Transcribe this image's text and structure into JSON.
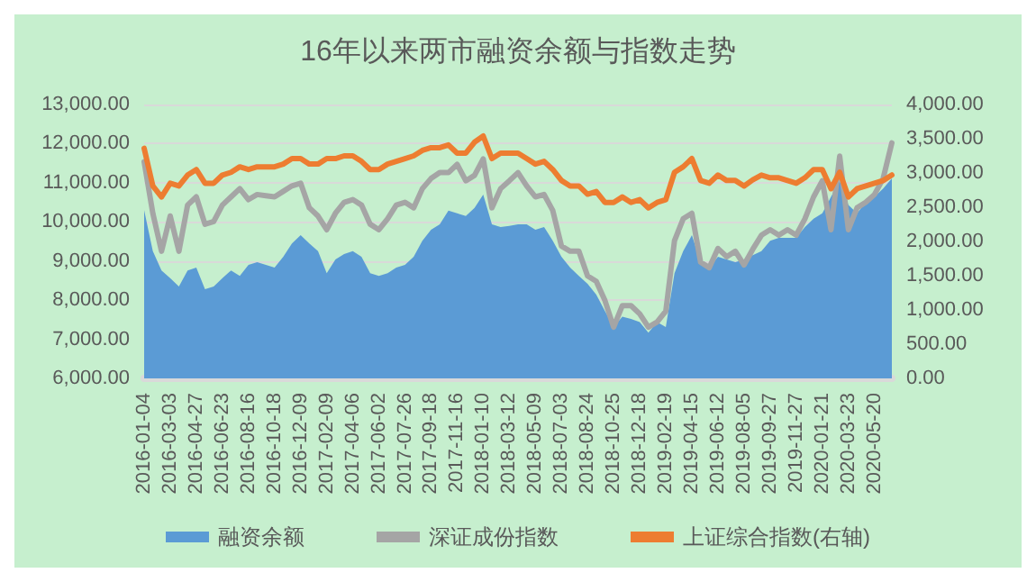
{
  "chart_data": {
    "type": "line",
    "title": "16年以来两市融资余额与指数走势",
    "categories": [
      "2016-01-04",
      null,
      null,
      "2016-03-03",
      null,
      null,
      "2016-04-27",
      null,
      null,
      "2016-06-23",
      null,
      null,
      "2016-08-16",
      null,
      null,
      "2016-10-18",
      null,
      null,
      "2016-12-09",
      null,
      null,
      "2017-02-09",
      null,
      null,
      "2017-04-06",
      null,
      null,
      "2017-06-02",
      null,
      null,
      "2017-07-26",
      null,
      null,
      "2017-09-18",
      null,
      null,
      "2017-11-16",
      null,
      null,
      "2018-01-10",
      null,
      null,
      "2018-03-12",
      null,
      null,
      "2018-05-09",
      null,
      null,
      "2018-07-03",
      null,
      null,
      "2018-08-24",
      null,
      null,
      "2018-10-25",
      null,
      null,
      "2018-12-18",
      null,
      null,
      "2019-02-19",
      null,
      null,
      "2019-04-15",
      null,
      null,
      "2019-06-12",
      null,
      null,
      "2019-08-05",
      null,
      null,
      "2019-09-27",
      null,
      null,
      "2019-11-27",
      null,
      null,
      "2020-01-21",
      null,
      null,
      "2020-03-23",
      null,
      null,
      "2020-05-20",
      null,
      null
    ],
    "series": [
      {
        "name": "融资余额",
        "type": "area",
        "color": "#5b9bd5",
        "values": [
          10300,
          9250,
          8760,
          8560,
          8350,
          8760,
          8830,
          8280,
          8350,
          8560,
          8760,
          8620,
          8900,
          8970,
          8900,
          8830,
          9110,
          9450,
          9660,
          9450,
          9250,
          8690,
          9040,
          9180,
          9250,
          9110,
          8690,
          8620,
          8690,
          8830,
          8900,
          9110,
          9520,
          9800,
          9940,
          10290,
          10220,
          10150,
          10360,
          10700,
          9940,
          9870,
          9900,
          9940,
          9940,
          9800,
          9870,
          9520,
          9110,
          8830,
          8620,
          8420,
          8140,
          7720,
          7310,
          7580,
          7520,
          7440,
          7170,
          7440,
          7310,
          8690,
          9250,
          9660,
          8970,
          8830,
          9110,
          9040,
          8970,
          9040,
          9150,
          9250,
          9520,
          9590,
          9590,
          9590,
          9870,
          10080,
          10220,
          10640,
          11050,
          10430,
          10220,
          10500,
          10640,
          10850,
          11110
        ]
      },
      {
        "name": "深证成份指数",
        "type": "line",
        "color": "#a5a5a5",
        "values": [
          11540,
          10220,
          9250,
          10150,
          9250,
          10430,
          10640,
          9940,
          10010,
          10430,
          10640,
          10850,
          10570,
          10700,
          10670,
          10640,
          10780,
          10920,
          10990,
          10360,
          10150,
          9800,
          10220,
          10500,
          10570,
          10430,
          9940,
          9800,
          10080,
          10430,
          10500,
          10360,
          10850,
          11110,
          11260,
          11260,
          11470,
          11050,
          11190,
          11610,
          10360,
          10850,
          11050,
          11260,
          10920,
          10640,
          10700,
          10290,
          9380,
          9250,
          9250,
          8620,
          8480,
          7990,
          7310,
          7860,
          7860,
          7650,
          7310,
          7440,
          7720,
          9520,
          10080,
          10220,
          8970,
          8830,
          9320,
          9110,
          9250,
          8900,
          9300,
          9660,
          9800,
          9660,
          9800,
          9660,
          10080,
          10640,
          11050,
          9800,
          11680,
          9800,
          10360,
          10500,
          10700,
          11110,
          12020
        ]
      },
      {
        "name": "上证综合指数(右轴)",
        "type": "line",
        "axis": "y2",
        "color": "#ed7d31",
        "values": [
          3360,
          2810,
          2650,
          2850,
          2810,
          2970,
          3050,
          2850,
          2850,
          2970,
          3010,
          3090,
          3050,
          3090,
          3090,
          3090,
          3130,
          3210,
          3210,
          3130,
          3130,
          3210,
          3210,
          3250,
          3250,
          3170,
          3050,
          3050,
          3130,
          3170,
          3210,
          3250,
          3330,
          3370,
          3370,
          3410,
          3290,
          3290,
          3450,
          3540,
          3210,
          3290,
          3290,
          3290,
          3210,
          3130,
          3170,
          3050,
          2890,
          2810,
          2810,
          2690,
          2730,
          2570,
          2570,
          2650,
          2570,
          2610,
          2490,
          2570,
          2610,
          3010,
          3090,
          3210,
          2890,
          2850,
          2970,
          2890,
          2890,
          2810,
          2900,
          2970,
          2930,
          2930,
          2890,
          2850,
          2930,
          3050,
          3050,
          2770,
          3010,
          2650,
          2770,
          2810,
          2850,
          2890,
          2970
        ]
      }
    ],
    "ylim": [
      6000,
      13000
    ],
    "yticks": [
      {
        "value": 6000,
        "label": "6,000.00"
      },
      {
        "value": 7000,
        "label": "7,000.00"
      },
      {
        "value": 8000,
        "label": "8,000.00"
      },
      {
        "value": 9000,
        "label": "9,000.00"
      },
      {
        "value": 10000,
        "label": "10,000.00"
      },
      {
        "value": 11000,
        "label": "11,000.00"
      },
      {
        "value": 12000,
        "label": "12,000.00"
      },
      {
        "value": 13000,
        "label": "13,000.00"
      }
    ],
    "y2lim": [
      0,
      4000
    ],
    "y2ticks": [
      {
        "value": 0,
        "label": "0.00"
      },
      {
        "value": 500,
        "label": "500.00"
      },
      {
        "value": 1000,
        "label": "1,000.00"
      },
      {
        "value": 1500,
        "label": "1,500.00"
      },
      {
        "value": 2000,
        "label": "2,000.00"
      },
      {
        "value": 2500,
        "label": "2,500.00"
      },
      {
        "value": 3000,
        "label": "3,000.00"
      },
      {
        "value": 3500,
        "label": "3,500.00"
      },
      {
        "value": 4000,
        "label": "4,000.00"
      }
    ],
    "grid": "y",
    "legend": "bottom",
    "marker": "none",
    "line_style": "solid"
  }
}
